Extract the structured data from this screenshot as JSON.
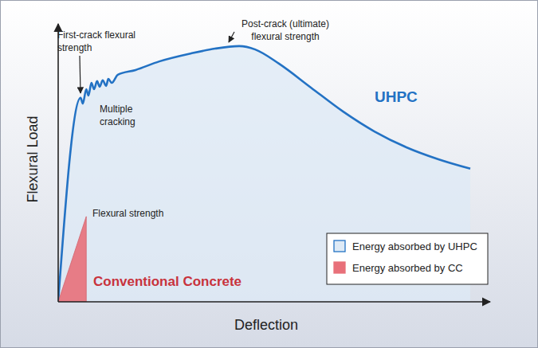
{
  "chart_data": {
    "type": "area",
    "x_label": "Deflection",
    "y_label": "Flexural Load",
    "xlim": [
      0,
      100
    ],
    "ylim": [
      0,
      100
    ],
    "tick_labels": false,
    "legend": "lower right",
    "series": [
      {
        "name": "Energy absorbed by UHPC",
        "color": "#2372c4",
        "line_style": "solid",
        "x": [
          0,
          5.2,
          5.7,
          6.5,
          7.0,
          7.7,
          8.3,
          9.0,
          9.6,
          10.3,
          11.1,
          11.6,
          12.4,
          13.8,
          17.9,
          23.4,
          30.8,
          36.3,
          41.9,
          45.6,
          51.1,
          58.5,
          65.9,
          73.2,
          80.6,
          88.0,
          95.4
        ],
        "values": [
          0,
          73.4,
          71.3,
          76.5,
          74.2,
          78.8,
          76.5,
          79.4,
          77.4,
          79.7,
          77.7,
          80.2,
          78.8,
          81.7,
          83.4,
          86.5,
          89.4,
          91.1,
          92.0,
          90.8,
          85.7,
          77.1,
          68.5,
          61.3,
          55.6,
          51.3,
          47.9
        ]
      },
      {
        "name": "Energy absorbed by CC",
        "color": "#e8707a",
        "line_style": "none",
        "x": [
          0,
          6.5
        ],
        "values": [
          0,
          30.7
        ]
      }
    ],
    "annotations": [
      {
        "lines": [
          "First-crack flexural",
          "strength"
        ]
      },
      {
        "lines": [
          "Multiple",
          "cracking"
        ]
      },
      {
        "lines": [
          "Post-crack (ultimate)",
          "flexural strength"
        ]
      },
      {
        "lines": [
          "UHPC"
        ],
        "color": "#2372c4"
      },
      {
        "lines": [
          "Flexural strength"
        ]
      },
      {
        "lines": [
          "Conventional Concrete"
        ],
        "color": "#c8323c"
      }
    ]
  }
}
